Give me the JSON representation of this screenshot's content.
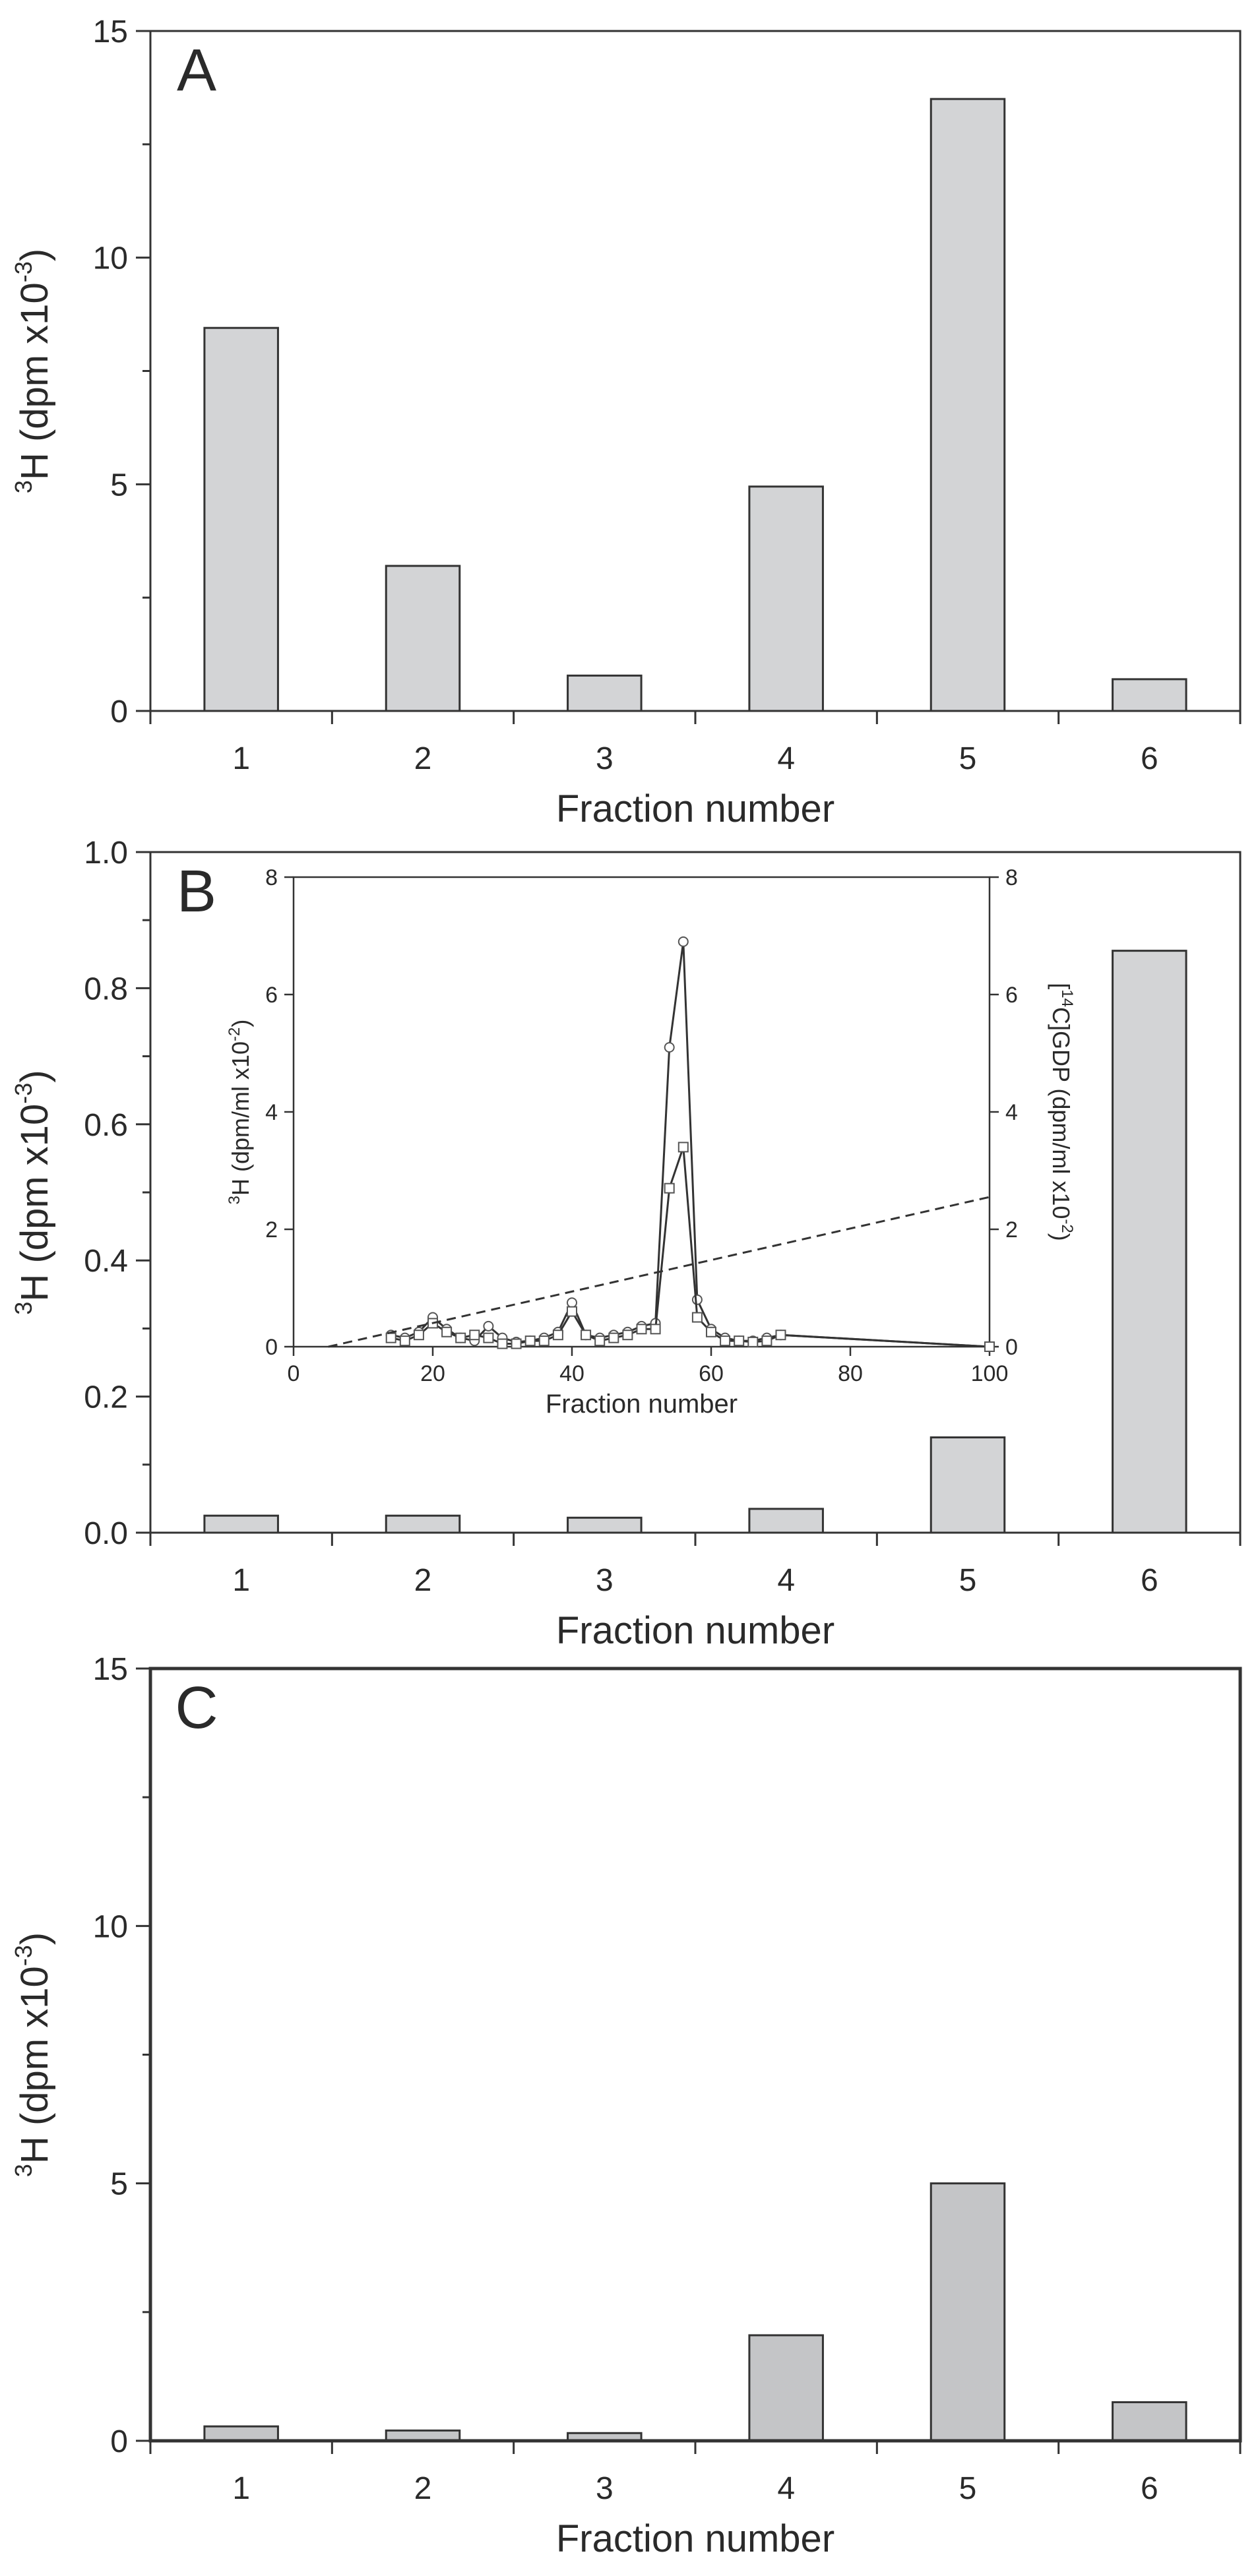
{
  "chart_data": [
    {
      "type": "bar",
      "panel_label": "A",
      "categories": [
        "1",
        "2",
        "3",
        "4",
        "5",
        "6"
      ],
      "values": [
        8.45,
        3.2,
        0.78,
        4.95,
        13.5,
        0.7
      ],
      "xlabel": "Fraction number",
      "ylabel": {
        "base": "H (dpm x10",
        "sup1": "3",
        "sup2": "-3",
        "close": ")"
      },
      "ylim": [
        0,
        15
      ],
      "yticks": [
        0,
        5,
        10,
        15
      ],
      "ytick_labels": [
        "0",
        "5",
        "10",
        "15"
      ],
      "bar_color": "#d3d4d6",
      "grid": false
    },
    {
      "type": "bar",
      "panel_label": "B",
      "categories": [
        "1",
        "2",
        "3",
        "4",
        "5",
        "6"
      ],
      "values": [
        0.025,
        0.025,
        0.022,
        0.035,
        0.14,
        0.855
      ],
      "xlabel": "Fraction number",
      "ylabel": {
        "base": "H (dpm x10",
        "sup1": "3",
        "sup2": "-3",
        "close": ")"
      },
      "ylim": [
        0,
        1.0
      ],
      "yticks": [
        0,
        0.2,
        0.4,
        0.6,
        0.8,
        1.0
      ],
      "ytick_labels": [
        "0.0",
        "0.2",
        "0.4",
        "0.6",
        "0.8",
        "1.0"
      ],
      "bar_color": "#d3d4d6",
      "grid": false,
      "inset": {
        "type": "line",
        "xlabel": "Fraction number",
        "ylabel_left": {
          "base": "H (dpm/ml x10",
          "sup1": "3",
          "sup2": "-2",
          "close": ")"
        },
        "ylabel_right": {
          "pre": "[",
          "sup1": "14",
          "base": "C]GDP (dpm/ml x10",
          "sup2": "-2",
          "close": ")"
        },
        "xlim": [
          0,
          100
        ],
        "ylim": [
          0,
          8
        ],
        "xticks": [
          0,
          20,
          40,
          60,
          80,
          100
        ],
        "xtick_labels": [
          "0",
          "20",
          "40",
          "60",
          "80",
          "100"
        ],
        "yticks": [
          0,
          2,
          4,
          6,
          8
        ],
        "ytick_labels": [
          "0",
          "2",
          "4",
          "6",
          "8"
        ],
        "series": [
          {
            "name": "circles",
            "marker": "circle",
            "x": [
              14,
              16,
              18,
              20,
              22,
              24,
              26,
              28,
              30,
              32,
              34,
              36,
              38,
              40,
              42,
              44,
              46,
              48,
              50,
              52,
              54,
              56,
              58,
              60,
              62,
              64,
              66,
              68,
              70,
              100
            ],
            "y": [
              0.2,
              0.15,
              0.25,
              0.5,
              0.3,
              0.15,
              0.1,
              0.35,
              0.15,
              0.08,
              0.1,
              0.15,
              0.25,
              0.75,
              0.2,
              0.15,
              0.2,
              0.25,
              0.35,
              0.4,
              5.1,
              6.9,
              0.8,
              0.3,
              0.15,
              0.1,
              0.1,
              0.15,
              0.2,
              0.0
            ]
          },
          {
            "name": "squares",
            "marker": "square",
            "x": [
              14,
              16,
              18,
              20,
              22,
              24,
              26,
              28,
              30,
              32,
              34,
              36,
              38,
              40,
              42,
              44,
              46,
              48,
              50,
              52,
              54,
              56,
              58,
              60,
              62,
              64,
              66,
              68,
              70,
              100
            ],
            "y": [
              0.15,
              0.1,
              0.2,
              0.4,
              0.25,
              0.15,
              0.2,
              0.15,
              0.05,
              0.05,
              0.1,
              0.1,
              0.2,
              0.6,
              0.2,
              0.1,
              0.15,
              0.2,
              0.3,
              0.3,
              2.7,
              3.4,
              0.5,
              0.25,
              0.1,
              0.1,
              0.08,
              0.1,
              0.2,
              0.0
            ]
          },
          {
            "name": "gradient",
            "style": "dashed",
            "x": [
              5,
              100
            ],
            "y": [
              0,
              2.55
            ]
          }
        ]
      }
    },
    {
      "type": "bar",
      "panel_label": "C",
      "categories": [
        "1",
        "2",
        "3",
        "4",
        "5",
        "6"
      ],
      "values": [
        0.28,
        0.2,
        0.15,
        2.05,
        5.0,
        0.75
      ],
      "xlabel": "Fraction number",
      "ylabel": {
        "base": "H (dpm x10",
        "sup1": "3",
        "sup2": "-3",
        "close": ")"
      },
      "ylim": [
        0,
        15
      ],
      "yticks": [
        0,
        5,
        10,
        15
      ],
      "ytick_labels": [
        "0",
        "5",
        "10",
        "15"
      ],
      "bar_color": "#c4c5c7",
      "grid": false
    }
  ]
}
